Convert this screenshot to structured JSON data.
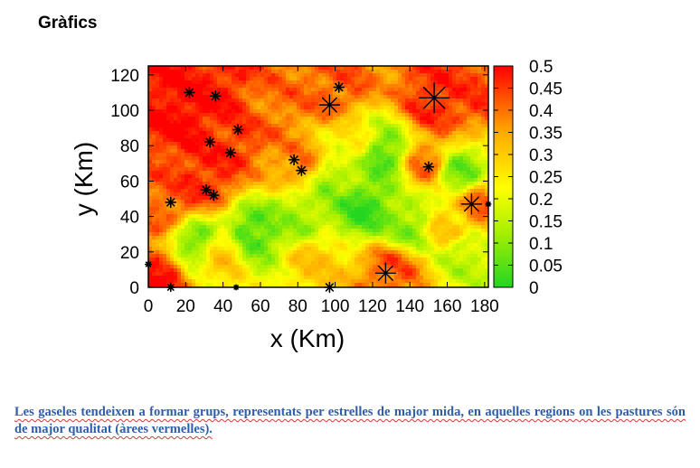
{
  "page": {
    "heading": "Gràfics",
    "caption": "Les gaseles tendeixen a formar grups, representats per estrelles de major mida, en aquelles regions on les pastures són de major qualitat (àrees vermelles)."
  },
  "chart_data": {
    "type": "heatmap",
    "title": "",
    "xlabel": "x (Km)",
    "ylabel": "y (Km)",
    "xlim": [
      0,
      182
    ],
    "ylim": [
      0,
      125
    ],
    "xticks": [
      0,
      20,
      40,
      60,
      80,
      100,
      120,
      140,
      160,
      180
    ],
    "yticks": [
      0,
      20,
      40,
      60,
      80,
      100,
      120
    ],
    "colorbar": {
      "range": [
        0,
        0.5
      ],
      "ticks": [
        "0",
        "0.05",
        "0.1",
        "0.15",
        "0.2",
        "0.25",
        "0.3",
        "0.35",
        "0.4",
        "0.45",
        "0.5"
      ],
      "colors": [
        "#22d622",
        "#ffff00",
        "#ff0000"
      ],
      "position": "right"
    },
    "heat_sources": [
      {
        "x": 20,
        "y": 100,
        "value": 0.5
      },
      {
        "x": 35,
        "y": 108,
        "value": 0.48
      },
      {
        "x": 30,
        "y": 60,
        "value": 0.47
      },
      {
        "x": 45,
        "y": 85,
        "value": 0.46
      },
      {
        "x": 10,
        "y": 45,
        "value": 0.42
      },
      {
        "x": 5,
        "y": 8,
        "value": 0.48
      },
      {
        "x": 65,
        "y": 100,
        "value": 0.4
      },
      {
        "x": 80,
        "y": 70,
        "value": 0.38
      },
      {
        "x": 100,
        "y": 112,
        "value": 0.42
      },
      {
        "x": 155,
        "y": 105,
        "value": 0.47
      },
      {
        "x": 175,
        "y": 110,
        "value": 0.44
      },
      {
        "x": 150,
        "y": 70,
        "value": 0.4
      },
      {
        "x": 178,
        "y": 45,
        "value": 0.4
      },
      {
        "x": 130,
        "y": 10,
        "value": 0.42
      },
      {
        "x": 160,
        "y": 35,
        "value": 0.3
      },
      {
        "x": 110,
        "y": 80,
        "value": 0.25
      },
      {
        "x": 40,
        "y": 20,
        "value": 0.3
      },
      {
        "x": 90,
        "y": 15,
        "value": 0.3
      },
      {
        "x": 55,
        "y": 30,
        "value": 0.04
      },
      {
        "x": 115,
        "y": 45,
        "value": 0.03
      },
      {
        "x": 125,
        "y": 75,
        "value": 0.05
      },
      {
        "x": 165,
        "y": 65,
        "value": 0.08
      },
      {
        "x": 100,
        "y": 60,
        "value": 0.12
      },
      {
        "x": 25,
        "y": 25,
        "value": 0.08
      },
      {
        "x": 170,
        "y": 20,
        "value": 0.15
      },
      {
        "x": 80,
        "y": 40,
        "value": 0.12
      },
      {
        "x": 140,
        "y": 35,
        "value": 0.1
      }
    ],
    "series": [
      {
        "type": "scatter",
        "marker": "star",
        "points": [
          {
            "x": 22,
            "y": 110,
            "size": 1
          },
          {
            "x": 36,
            "y": 108,
            "size": 1
          },
          {
            "x": 102,
            "y": 113,
            "size": 1
          },
          {
            "x": 97,
            "y": 103,
            "size": 2
          },
          {
            "x": 153,
            "y": 107,
            "size": 3
          },
          {
            "x": 48,
            "y": 89,
            "size": 1
          },
          {
            "x": 33,
            "y": 82,
            "size": 1
          },
          {
            "x": 44,
            "y": 76,
            "size": 1
          },
          {
            "x": 78,
            "y": 72,
            "size": 1
          },
          {
            "x": 82,
            "y": 66,
            "size": 1
          },
          {
            "x": 150,
            "y": 68,
            "size": 1
          },
          {
            "x": 31,
            "y": 55,
            "size": 1
          },
          {
            "x": 35,
            "y": 52,
            "size": 1
          },
          {
            "x": 12,
            "y": 48,
            "size": 1
          },
          {
            "x": 173,
            "y": 47,
            "size": 2
          },
          {
            "x": 0,
            "y": 13,
            "size": 0.6
          },
          {
            "x": 12,
            "y": 0,
            "size": 0.8
          },
          {
            "x": 47,
            "y": 0,
            "size": 0.5
          },
          {
            "x": 97,
            "y": 0,
            "size": 1
          },
          {
            "x": 127,
            "y": 8,
            "size": 2
          },
          {
            "x": 182,
            "y": 47,
            "size": 0.5
          }
        ]
      }
    ]
  }
}
